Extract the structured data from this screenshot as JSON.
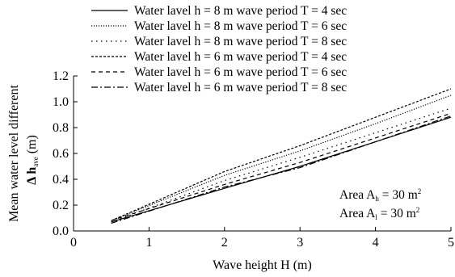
{
  "chart_data": {
    "type": "line",
    "title": "",
    "xlabel": "Wave height H (m)",
    "ylabel_line1": "Mean water level different",
    "ylabel_line2_prefix": "Δ h",
    "ylabel_line2_sub": "ave",
    "ylabel_line2_suffix": " (m)",
    "xlim": [
      0,
      5
    ],
    "ylim": [
      0,
      1.2
    ],
    "xticks": [
      "0",
      "1",
      "2",
      "3",
      "4",
      "5"
    ],
    "yticks": [
      "0.0",
      "0.2",
      "0.4",
      "0.6",
      "0.8",
      "1.0",
      "1.2"
    ],
    "grid": false,
    "legend_position": "top-left",
    "series": [
      {
        "name": "Water lavel h = 8 m wave period T = 4 sec",
        "dash": "solid",
        "x": [
          0.5,
          2.0,
          3.0,
          4.0,
          5.0
        ],
        "y": [
          0.07,
          0.33,
          0.5,
          0.69,
          0.88
        ]
      },
      {
        "name": "Water lavel h = 8 m wave period T = 6 sec",
        "dash": "dotted",
        "x": [
          0.5,
          2.0,
          3.0,
          4.0,
          5.0
        ],
        "y": [
          0.08,
          0.43,
          0.62,
          0.83,
          1.05
        ]
      },
      {
        "name": "Water lavel h = 8 m wave period T = 8 sec",
        "dash": "dotted-sparse",
        "x": [
          0.5,
          2.0,
          3.0,
          4.0,
          5.0
        ],
        "y": [
          0.07,
          0.39,
          0.57,
          0.76,
          0.95
        ]
      },
      {
        "name": "Water lavel h = 6 m wave period T = 4 sec",
        "dash": "short-dash",
        "x": [
          0.5,
          2.0,
          3.0,
          4.0,
          5.0
        ],
        "y": [
          0.08,
          0.46,
          0.66,
          0.88,
          1.1
        ]
      },
      {
        "name": "Water lavel h = 6 m wave period T = 6 sec",
        "dash": "dash",
        "x": [
          0.5,
          2.0,
          3.0,
          4.0,
          5.0
        ],
        "y": [
          0.08,
          0.36,
          0.53,
          0.72,
          0.91
        ]
      },
      {
        "name": "Water lavel h = 6 m wave period T = 8 sec",
        "dash": "dash-dot",
        "x": [
          0.5,
          2.0,
          3.0,
          4.0,
          5.0
        ],
        "y": [
          0.06,
          0.34,
          0.49,
          0.69,
          0.89
        ]
      }
    ],
    "annotations": [
      {
        "prefix": "Area A",
        "sub": "h",
        "mid": " = 30 m",
        "sup": "2"
      },
      {
        "prefix": "Area A",
        "sub": "l",
        "mid": " =  30 m",
        "sup": "2"
      }
    ]
  }
}
